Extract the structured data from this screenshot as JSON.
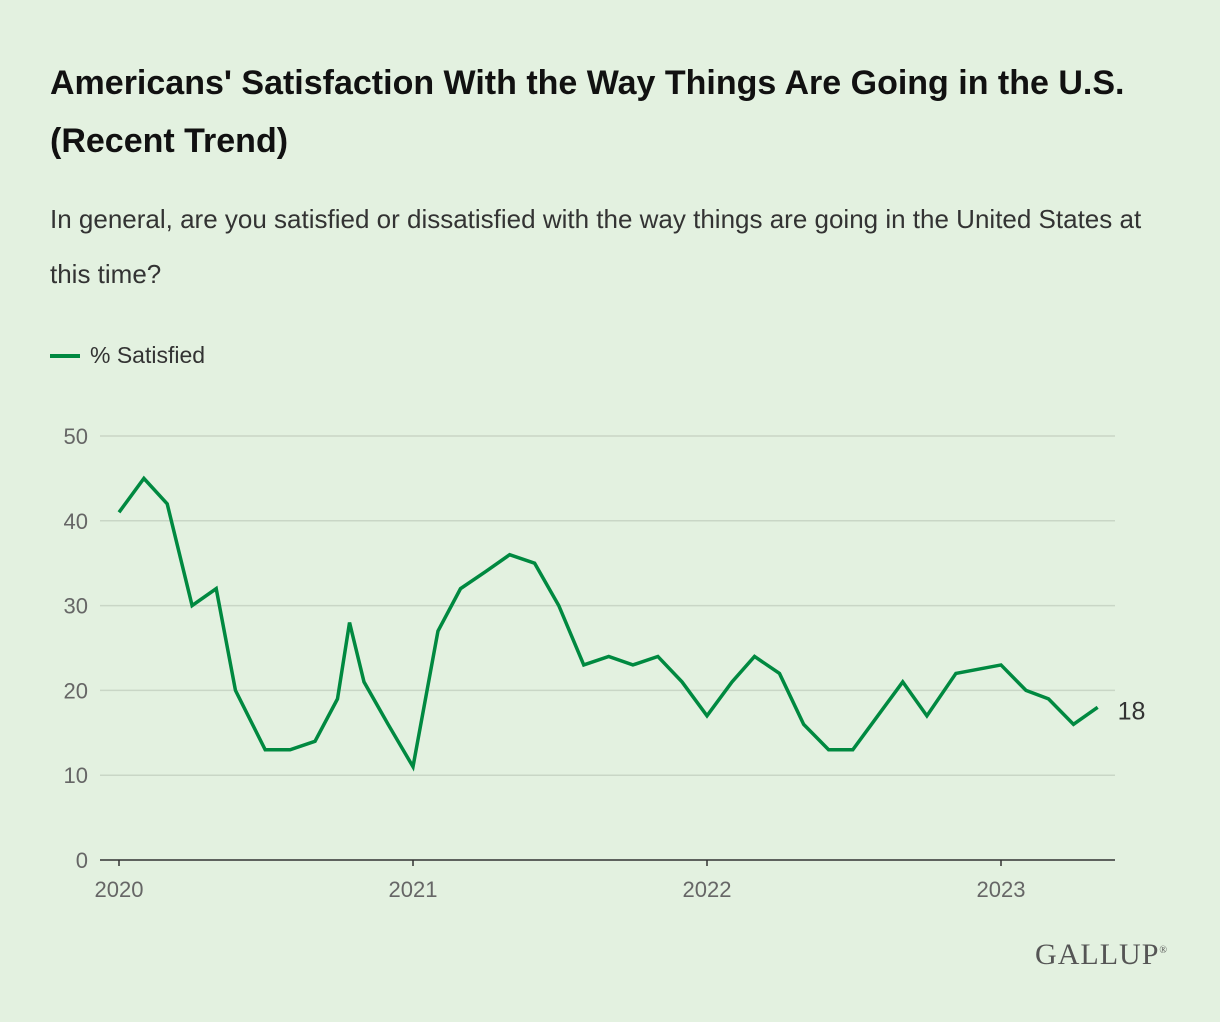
{
  "chart_data": {
    "type": "line",
    "title": "Americans' Satisfaction With the Way Things Are Going in the U.S. (Recent Trend)",
    "subtitle": "In general, are you satisfied or dissatisfied with the way things are going in the United States at this time?",
    "xlabel": "",
    "ylabel": "",
    "ylim": [
      0,
      50
    ],
    "yticks": [
      "0",
      "10",
      "20",
      "30",
      "40",
      "50"
    ],
    "xticks": [
      "2020",
      "2021",
      "2022",
      "2023"
    ],
    "grid": true,
    "legend": "top-left",
    "series": [
      {
        "name": "% Satisfied",
        "color": "#008940",
        "end_label": "18",
        "points": [
          [
            "2020-01-01",
            41
          ],
          [
            "2020-02-01",
            45
          ],
          [
            "2020-03-01",
            42
          ],
          [
            "2020-04-01",
            30
          ],
          [
            "2020-05-01",
            32
          ],
          [
            "2020-05-25",
            20
          ],
          [
            "2020-07-01",
            13
          ],
          [
            "2020-08-01",
            13
          ],
          [
            "2020-09-01",
            14
          ],
          [
            "2020-09-29",
            19
          ],
          [
            "2020-10-14",
            28
          ],
          [
            "2020-11-01",
            21
          ],
          [
            "2020-12-01",
            16
          ],
          [
            "2021-01-01",
            11
          ],
          [
            "2021-02-01",
            27
          ],
          [
            "2021-03-01",
            32
          ],
          [
            "2021-04-01",
            34
          ],
          [
            "2021-05-01",
            36
          ],
          [
            "2021-06-01",
            35
          ],
          [
            "2021-07-01",
            30
          ],
          [
            "2021-08-01",
            23
          ],
          [
            "2021-09-01",
            24
          ],
          [
            "2021-10-01",
            23
          ],
          [
            "2021-11-01",
            24
          ],
          [
            "2021-12-01",
            21
          ],
          [
            "2022-01-01",
            17
          ],
          [
            "2022-02-01",
            21
          ],
          [
            "2022-03-01",
            24
          ],
          [
            "2022-04-01",
            22
          ],
          [
            "2022-05-01",
            16
          ],
          [
            "2022-06-01",
            13
          ],
          [
            "2022-07-01",
            13
          ],
          [
            "2022-08-01",
            17
          ],
          [
            "2022-09-01",
            21
          ],
          [
            "2022-10-01",
            17
          ],
          [
            "2022-11-06",
            22
          ],
          [
            "2023-01-01",
            23
          ],
          [
            "2023-02-01",
            20
          ],
          [
            "2023-03-01",
            19
          ],
          [
            "2023-04-01",
            16
          ],
          [
            "2023-05-01",
            18
          ]
        ]
      }
    ]
  },
  "brand": "GALLUP"
}
